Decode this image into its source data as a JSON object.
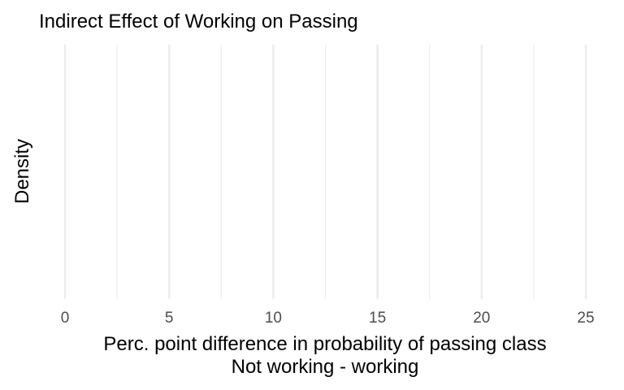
{
  "chart_data": {
    "type": "area",
    "title": "Indirect Effect of Working on Passing",
    "xlabel_lines": [
      "Perc. point difference in probability of passing class",
      "Not working - working"
    ],
    "ylabel": "Density",
    "xlim": [
      0,
      25
    ],
    "x_ticks": [
      0,
      5,
      10,
      15,
      20,
      25
    ],
    "x_minor_ticks": [
      2.5,
      7.5,
      12.5,
      17.5,
      22.5
    ],
    "y_ticks_visible": false,
    "grid": "vertical",
    "legend": "none",
    "series": [],
    "colors": {
      "grid": "#ebebeb",
      "tick_text": "#4d4d4d",
      "text": "#000000",
      "background": "#ffffff"
    }
  }
}
